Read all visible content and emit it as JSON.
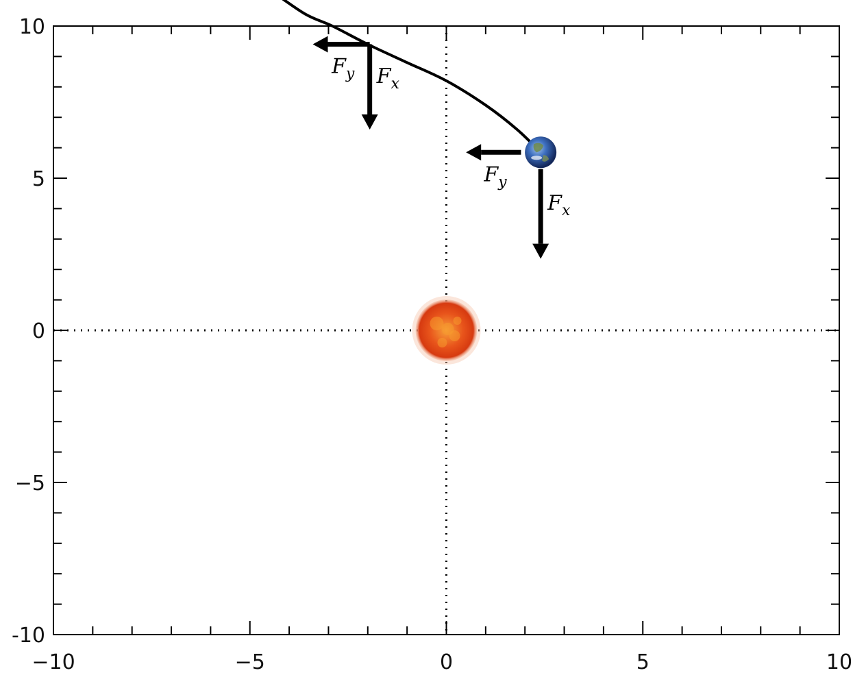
{
  "chart_data": {
    "type": "diagram",
    "xlim": [
      -10,
      10
    ],
    "ylim": [
      -10,
      10
    ],
    "x_ticks": [
      -10,
      -5,
      0,
      5,
      10
    ],
    "y_ticks": [
      -10,
      -5,
      0,
      5,
      10
    ],
    "x_tick_labels": [
      "−10",
      "−5",
      "0",
      "5",
      "10"
    ],
    "y_tick_labels": [
      "-10",
      "−5",
      "0",
      "5",
      "10"
    ],
    "minor_tick_step": 1,
    "zero_lines": "dotted",
    "orbit": {
      "description_points": [
        [
          -4.5,
          11.2
        ],
        [
          -3.6,
          10.4
        ],
        [
          -2.9,
          10.0
        ],
        [
          -2.0,
          9.4
        ],
        [
          -1.0,
          8.8
        ],
        [
          0.0,
          8.2
        ],
        [
          1.0,
          7.4
        ],
        [
          1.8,
          6.6
        ],
        [
          2.4,
          5.85
        ]
      ]
    },
    "sun": {
      "x": 0,
      "y": 0,
      "color": "#e8541b"
    },
    "earth": {
      "x": 2.4,
      "y": 5.85,
      "color": "#2f5fb3"
    },
    "force_arrows": [
      {
        "id": "upper-fy",
        "x0": -1.95,
        "y0": 9.4,
        "x1": -3.4,
        "y1": 9.4,
        "label": "F",
        "sub": "y"
      },
      {
        "id": "upper-fx",
        "x0": -1.95,
        "y0": 9.4,
        "x1": -1.95,
        "y1": 6.6,
        "label": "F",
        "sub": "x"
      },
      {
        "id": "earth-fy",
        "x0": 1.9,
        "y0": 5.85,
        "x1": 0.5,
        "y1": 5.85,
        "label": "F",
        "sub": "y"
      },
      {
        "id": "earth-fx",
        "x0": 2.4,
        "y0": 5.3,
        "x1": 2.4,
        "y1": 2.35,
        "label": "F",
        "sub": "x"
      }
    ]
  },
  "colors": {
    "axis": "#000000",
    "arrow": "#000000",
    "orbit": "#000000"
  }
}
